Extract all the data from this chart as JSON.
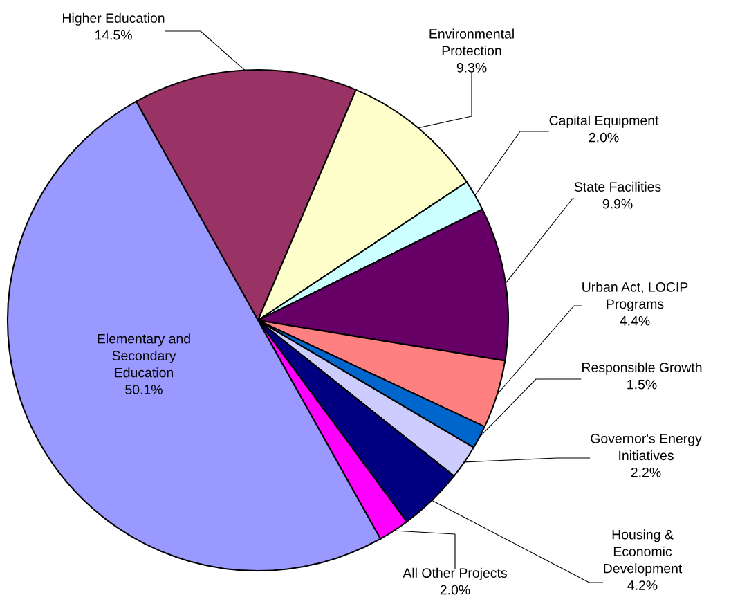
{
  "chart_data": {
    "type": "pie",
    "categories": [
      "Higher Education",
      "Environmental\nProtection",
      "Capital Equipment",
      "State Facilities",
      "Urban Act, LOCIP\nPrograms",
      "Responsible Growth",
      "Governor's Energy\nInitiatives",
      "Housing &\nEconomic\nDevelopment",
      "All Other Projects",
      "Elementary and\nSecondary\nEducation"
    ],
    "values": [
      14.5,
      9.3,
      2.0,
      9.9,
      4.4,
      1.5,
      2.2,
      4.2,
      2.0,
      50.1
    ],
    "value_labels": [
      "14.5%",
      "9.3%",
      "2.0%",
      "9.9%",
      "4.4%",
      "1.5%",
      "2.2%",
      "4.2%",
      "2.0%",
      "50.1%"
    ],
    "colors": [
      "#993366",
      "#ffffcc",
      "#ccffff",
      "#660066",
      "#ff8080",
      "#0066cc",
      "#ccccff",
      "#000080",
      "#ff00ff",
      "#9999ff"
    ]
  }
}
